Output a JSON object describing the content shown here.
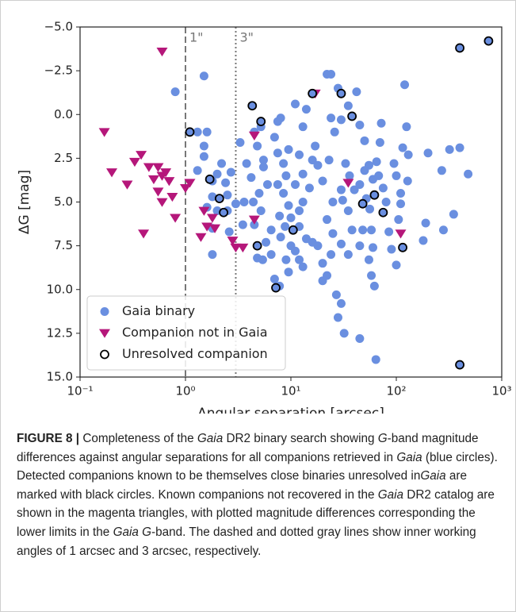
{
  "chart_data": {
    "type": "scatter",
    "xlabel": "Angular separation [arcsec]",
    "ylabel": "ΔG [mag]",
    "xlim": [
      0.1,
      1000
    ],
    "ylim": [
      -5,
      15
    ],
    "xscale": "log",
    "invert_y": true,
    "legend": "lower left",
    "xticks": [
      {
        "value": 0.1,
        "label": "10⁻¹"
      },
      {
        "value": 1,
        "label": "10⁰"
      },
      {
        "value": 10,
        "label": "10¹"
      },
      {
        "value": 100,
        "label": "10²"
      },
      {
        "value": 1000,
        "label": "10³"
      }
    ],
    "yticks": [
      {
        "value": -5,
        "label": "−5.0"
      },
      {
        "value": -2.5,
        "label": "−2.5"
      },
      {
        "value": 0,
        "label": "0.0"
      },
      {
        "value": 2.5,
        "label": "2.5"
      },
      {
        "value": 5,
        "label": "5.0"
      },
      {
        "value": 7.5,
        "label": "7.5"
      },
      {
        "value": 10,
        "label": "10.0"
      },
      {
        "value": 12.5,
        "label": "12.5"
      },
      {
        "value": 15,
        "label": "15.0"
      }
    ],
    "vlines": [
      {
        "x": 1,
        "label": "1\"",
        "style": "dashed",
        "color": "#777777"
      },
      {
        "x": 3,
        "label": "3\"",
        "style": "dotted",
        "color": "#777777"
      }
    ],
    "series": [
      {
        "name": "Gaia binary",
        "color": "#6a8fe0",
        "marker": "circle",
        "x": [
          0.8,
          1.5,
          1.3,
          1.6,
          1.5,
          1.5,
          1.3,
          2.2,
          2.0,
          1.8,
          2.4,
          2.7,
          2.5,
          1.8,
          2.0,
          1.6,
          2.5,
          3.0,
          1.8,
          2.6,
          1.8,
          3.3,
          3.8,
          4.5,
          5.2,
          4.8,
          5.5,
          5.5,
          4.2,
          5.0,
          6.0,
          3.6,
          4.4,
          5.2,
          3.5,
          4.5,
          6.5,
          5.8,
          4.8,
          5.4,
          6.5,
          7.0,
          7.8,
          8.0,
          7.5,
          7.0,
          7.5,
          8.5,
          9.0,
          7.5,
          8.5,
          7.8,
          9.5,
          8.8,
          10,
          9.0,
          9.5,
          8.0,
          10,
          9.5,
          11,
          14,
          13,
          12,
          13,
          11,
          12,
          13,
          15,
          16,
          17,
          18,
          20,
          12,
          14,
          11,
          16,
          12,
          13,
          18,
          20,
          22,
          20,
          24,
          25,
          22,
          25,
          23,
          26,
          24,
          22,
          24,
          28,
          30,
          35,
          33,
          36,
          30,
          31,
          35,
          30,
          27,
          28,
          32,
          30,
          35,
          38,
          40,
          42,
          45,
          50,
          55,
          60,
          50,
          45,
          52,
          56,
          58,
          48,
          45,
          60,
          55,
          58,
          62,
          45,
          64,
          65,
          70,
          72,
          75,
          80,
          85,
          90,
          100,
          68,
          95,
          100,
          110,
          105,
          120,
          125,
          115,
          130,
          128,
          110,
          200,
          190,
          180,
          270,
          320,
          350,
          280,
          480,
          400,
          1.1,
          1.7,
          2.1,
          2.3,
          4.3,
          5.2,
          4.8,
          7.2,
          10.5,
          16,
          30,
          38,
          48,
          62,
          75,
          115,
          400,
          750,
          400
        ],
        "values": [
          -1.3,
          -2.2,
          1.0,
          1.0,
          1.8,
          2.4,
          3.2,
          2.8,
          3.4,
          3.8,
          3.9,
          3.3,
          4.6,
          4.7,
          5.5,
          5.3,
          5.5,
          5.1,
          6.5,
          6.7,
          8.0,
          1.6,
          2.8,
          1.0,
          0.7,
          1.8,
          2.6,
          3.0,
          3.6,
          4.5,
          4.0,
          5.0,
          5.0,
          5.5,
          6.3,
          6.3,
          6.6,
          7.3,
          8.2,
          8.3,
          8.0,
          9.4,
          9.8,
          0.2,
          0.4,
          1.3,
          2.2,
          2.8,
          3.5,
          4.0,
          4.5,
          5.8,
          5.2,
          6.4,
          7.5,
          8.3,
          9.0,
          7.0,
          5.9,
          2.0,
          -0.6,
          -0.3,
          0.7,
          2.3,
          3.4,
          4.0,
          5.5,
          5.0,
          4.2,
          2.6,
          1.8,
          2.9,
          3.8,
          6.4,
          7.1,
          7.8,
          7.3,
          8.3,
          8.7,
          7.5,
          8.5,
          9.2,
          9.5,
          8.0,
          6.8,
          6.0,
          5.0,
          2.6,
          1.0,
          0.2,
          -2.3,
          -2.3,
          -1.5,
          0.3,
          -0.5,
          2.8,
          3.5,
          4.3,
          4.9,
          5.5,
          7.4,
          10.3,
          11.6,
          12.5,
          10.8,
          8.0,
          6.6,
          4.3,
          -1.3,
          0.6,
          1.5,
          2.9,
          3.7,
          3.2,
          4.0,
          4.8,
          5.4,
          6.6,
          6.6,
          7.5,
          7.6,
          8.3,
          9.2,
          9.8,
          12.8,
          14.0,
          2.7,
          1.6,
          0.5,
          4.2,
          5.0,
          6.7,
          7.7,
          8.6,
          3.5,
          2.8,
          3.5,
          4.5,
          6.0,
          -1.7,
          0.7,
          1.9,
          2.3,
          3.8,
          5.1,
          2.2,
          6.2,
          7.2,
          3.2,
          2.0,
          5.7,
          6.6,
          3.4,
          1.9,
          1.0,
          3.7,
          4.8,
          5.6,
          -0.5,
          0.4,
          7.5,
          9.9,
          6.6,
          -1.2,
          -1.2,
          0.1,
          5.1,
          4.6,
          5.6,
          7.6,
          -3.8,
          -4.2,
          14.3
        ]
      },
      {
        "name": "Companion not in Gaia",
        "color": "#b5177a",
        "marker": "triangle",
        "x": [
          0.6,
          0.17,
          0.2,
          0.28,
          0.33,
          0.38,
          0.45,
          0.5,
          0.55,
          0.55,
          0.6,
          0.65,
          0.7,
          0.6,
          0.75,
          0.8,
          0.4,
          1.0,
          1.1,
          1.5,
          1.6,
          1.4,
          1.8,
          1.9,
          2.8,
          3.0,
          3.5,
          4.5,
          4.5,
          17,
          35,
          110
        ],
        "values": [
          -3.6,
          1.0,
          3.3,
          4.0,
          2.7,
          2.3,
          3.0,
          3.7,
          3.0,
          4.4,
          3.5,
          3.3,
          3.8,
          5.0,
          4.7,
          5.9,
          6.8,
          4.2,
          3.9,
          5.5,
          6.4,
          7.0,
          5.9,
          6.5,
          7.2,
          7.6,
          7.6,
          1.2,
          6.0,
          -1.2,
          3.9,
          6.8
        ]
      },
      {
        "name": "Unresolved companion",
        "color": "#000000",
        "marker": "ring",
        "x": [
          1.1,
          1.7,
          2.1,
          2.3,
          4.3,
          5.2,
          4.8,
          7.2,
          10.5,
          16,
          30,
          38,
          48,
          62,
          75,
          115,
          400,
          750,
          400
        ],
        "values": [
          1.0,
          3.7,
          4.8,
          5.6,
          -0.5,
          0.4,
          7.5,
          9.9,
          6.6,
          -1.2,
          -1.2,
          0.1,
          5.1,
          4.6,
          5.6,
          7.6,
          -3.8,
          -4.2,
          14.3
        ]
      }
    ]
  },
  "caption": [
    {
      "text": "FIGURE 8 |",
      "bold": true
    },
    {
      "text": " Completeness of the "
    },
    {
      "text": "Gaia",
      "italic": true
    },
    {
      "text": " DR2 binary search showing "
    },
    {
      "text": "G",
      "italic": true
    },
    {
      "text": "-band magnitude differences against angular separations for all companions retrieved in "
    },
    {
      "text": "Gaia",
      "italic": true
    },
    {
      "text": " (blue circles). Detected companions known to be themselves close binaries unresolved in"
    },
    {
      "text": "Gaia",
      "italic": true
    },
    {
      "text": " are marked with black circles. Known companions not recovered in the "
    },
    {
      "text": "Gaia",
      "italic": true
    },
    {
      "text": " DR2 catalog are shown in the magenta triangles, with plotted magnitude differences corresponding the lower limits in the "
    },
    {
      "text": "Gaia G",
      "italic": true
    },
    {
      "text": "-band. The dashed and dotted gray lines show inner working angles of 1 arcsec and 3 arcsec, respectively."
    }
  ]
}
